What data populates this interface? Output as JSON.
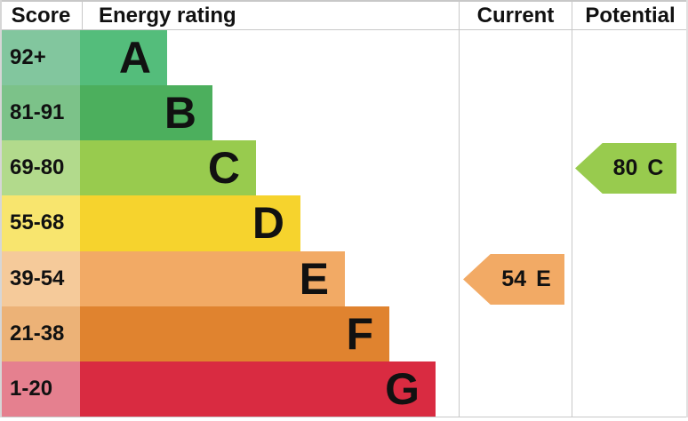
{
  "headers": {
    "score": "Score",
    "energy_rating": "Energy rating",
    "current": "Current",
    "potential": "Potential"
  },
  "chart_data": {
    "type": "bar",
    "title": "Energy rating",
    "description": "EPC energy efficiency rating chart with score bands A-G, current and potential ratings",
    "bands": [
      {
        "grade": "A",
        "score_range": "92+",
        "bar_color": "#54bd7b",
        "score_cell_color": "#82c69e",
        "bar_length": 1
      },
      {
        "grade": "B",
        "score_range": "81-91",
        "bar_color": "#4caf5d",
        "score_cell_color": "#7cc289",
        "bar_length": 2
      },
      {
        "grade": "C",
        "score_range": "69-80",
        "bar_color": "#98cb4e",
        "score_cell_color": "#b2da8c",
        "bar_length": 3
      },
      {
        "grade": "D",
        "score_range": "55-68",
        "bar_color": "#f6d32d",
        "score_cell_color": "#f8e56e",
        "bar_length": 4
      },
      {
        "grade": "E",
        "score_range": "39-54",
        "bar_color": "#f2aa65",
        "score_cell_color": "#f5ca9a",
        "bar_length": 5
      },
      {
        "grade": "F",
        "score_range": "21-38",
        "bar_color": "#e0832f",
        "score_cell_color": "#ecb277",
        "bar_length": 6
      },
      {
        "grade": "G",
        "score_range": "1-20",
        "bar_color": "#d92b41",
        "score_cell_color": "#e5808f",
        "bar_length": 7
      }
    ],
    "current": {
      "score": "54",
      "grade": "E",
      "color": "#f2aa65"
    },
    "potential": {
      "score": "80",
      "grade": "C",
      "color": "#98cb4e"
    }
  },
  "grid_color": "#c8c8c8"
}
